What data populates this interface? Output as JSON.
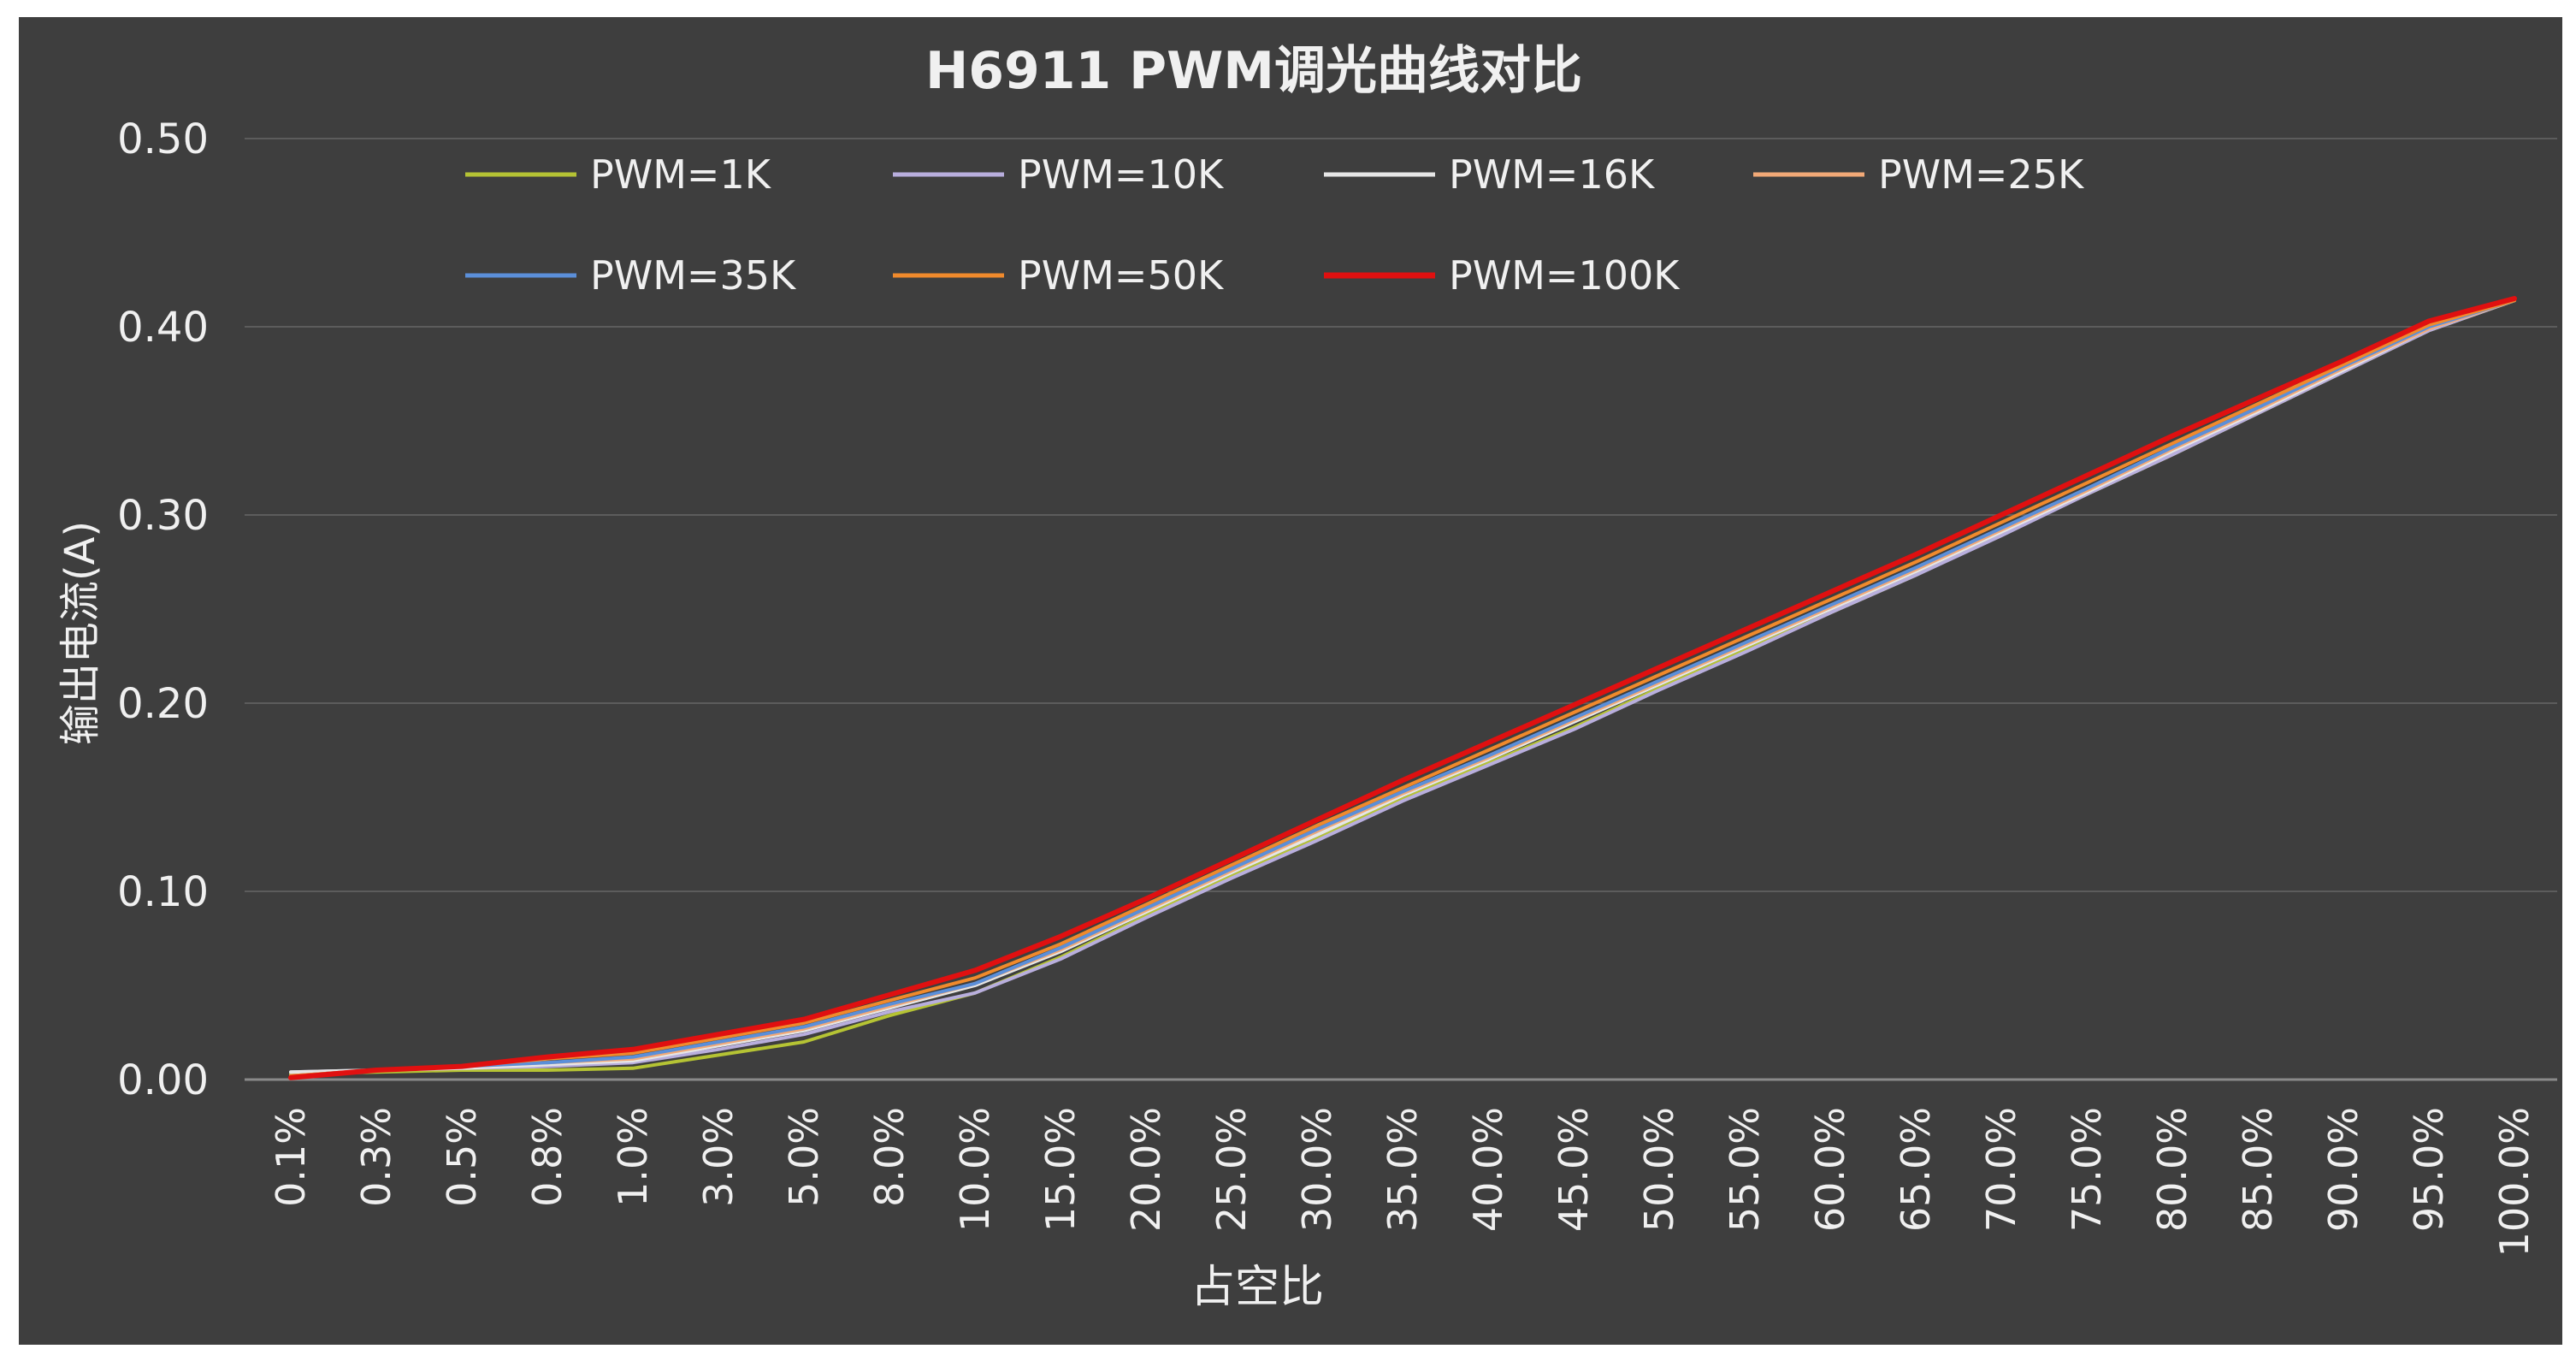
{
  "chart_data": {
    "type": "line",
    "title": "H6911 PWM调光曲线对比",
    "xlabel": "占空比",
    "ylabel": "输出电流(A)",
    "ylim": [
      0,
      0.5
    ],
    "yticks": [
      "0.00",
      "0.10",
      "0.20",
      "0.30",
      "0.40",
      "0.50"
    ],
    "grid": true,
    "legend_position": "top",
    "background_color": "#3e3e3e",
    "text_color": "#f0f0f0",
    "categories": [
      "0.1%",
      "0.3%",
      "0.5%",
      "0.8%",
      "1.0%",
      "3.0%",
      "5.0%",
      "8.0%",
      "10.0%",
      "15.0%",
      "20.0%",
      "25.0%",
      "30.0%",
      "35.0%",
      "40.0%",
      "45.0%",
      "50.0%",
      "55.0%",
      "60.0%",
      "65.0%",
      "70.0%",
      "75.0%",
      "80.0%",
      "85.0%",
      "90.0%",
      "95.0%",
      "100.0%"
    ],
    "series": [
      {
        "name": "PWM=1K",
        "color": "#b5c334",
        "values": [
          0.003,
          0.004,
          0.005,
          0.005,
          0.006,
          0.013,
          0.02,
          0.034,
          0.046,
          0.065,
          0.087,
          0.108,
          0.128,
          0.149,
          0.168,
          0.187,
          0.208,
          0.228,
          0.248,
          0.268,
          0.29,
          0.311,
          0.332,
          0.354,
          0.376,
          0.398,
          0.414
        ]
      },
      {
        "name": "PWM=10K",
        "color": "#b8aedd",
        "values": [
          0.004,
          0.005,
          0.006,
          0.007,
          0.009,
          0.016,
          0.024,
          0.036,
          0.046,
          0.064,
          0.086,
          0.107,
          0.127,
          0.148,
          0.167,
          0.186,
          0.207,
          0.227,
          0.248,
          0.268,
          0.289,
          0.311,
          0.332,
          0.354,
          0.376,
          0.398,
          0.414
        ]
      },
      {
        "name": "PWM=16K",
        "color": "#e6e6e6",
        "values": [
          0.004,
          0.005,
          0.006,
          0.008,
          0.01,
          0.018,
          0.026,
          0.038,
          0.05,
          0.068,
          0.089,
          0.11,
          0.13,
          0.151,
          0.17,
          0.19,
          0.21,
          0.23,
          0.25,
          0.27,
          0.291,
          0.312,
          0.334,
          0.355,
          0.377,
          0.399,
          0.414
        ]
      },
      {
        "name": "PWM=25K",
        "color": "#f2a977",
        "values": [
          0.002,
          0.005,
          0.007,
          0.009,
          0.011,
          0.019,
          0.027,
          0.039,
          0.051,
          0.069,
          0.09,
          0.111,
          0.132,
          0.152,
          0.171,
          0.191,
          0.211,
          0.231,
          0.251,
          0.271,
          0.292,
          0.313,
          0.335,
          0.356,
          0.378,
          0.399,
          0.414
        ]
      },
      {
        "name": "PWM=35K",
        "color": "#5b8fd9",
        "values": [
          0.002,
          0.005,
          0.007,
          0.009,
          0.012,
          0.02,
          0.028,
          0.04,
          0.051,
          0.07,
          0.091,
          0.112,
          0.133,
          0.153,
          0.172,
          0.192,
          0.212,
          0.232,
          0.252,
          0.272,
          0.293,
          0.314,
          0.336,
          0.357,
          0.379,
          0.4,
          0.414
        ]
      },
      {
        "name": "PWM=50K",
        "color": "#f08a2c",
        "values": [
          0.002,
          0.005,
          0.007,
          0.011,
          0.014,
          0.022,
          0.03,
          0.042,
          0.054,
          0.072,
          0.093,
          0.114,
          0.135,
          0.155,
          0.175,
          0.195,
          0.215,
          0.235,
          0.255,
          0.275,
          0.296,
          0.317,
          0.338,
          0.359,
          0.38,
          0.401,
          0.414
        ]
      },
      {
        "name": "PWM=100K",
        "color": "#e01010",
        "values": [
          0.001,
          0.005,
          0.007,
          0.012,
          0.016,
          0.024,
          0.032,
          0.045,
          0.058,
          0.076,
          0.096,
          0.117,
          0.138,
          0.159,
          0.179,
          0.199,
          0.219,
          0.239,
          0.259,
          0.279,
          0.3,
          0.321,
          0.342,
          0.362,
          0.382,
          0.403,
          0.415
        ]
      }
    ]
  }
}
